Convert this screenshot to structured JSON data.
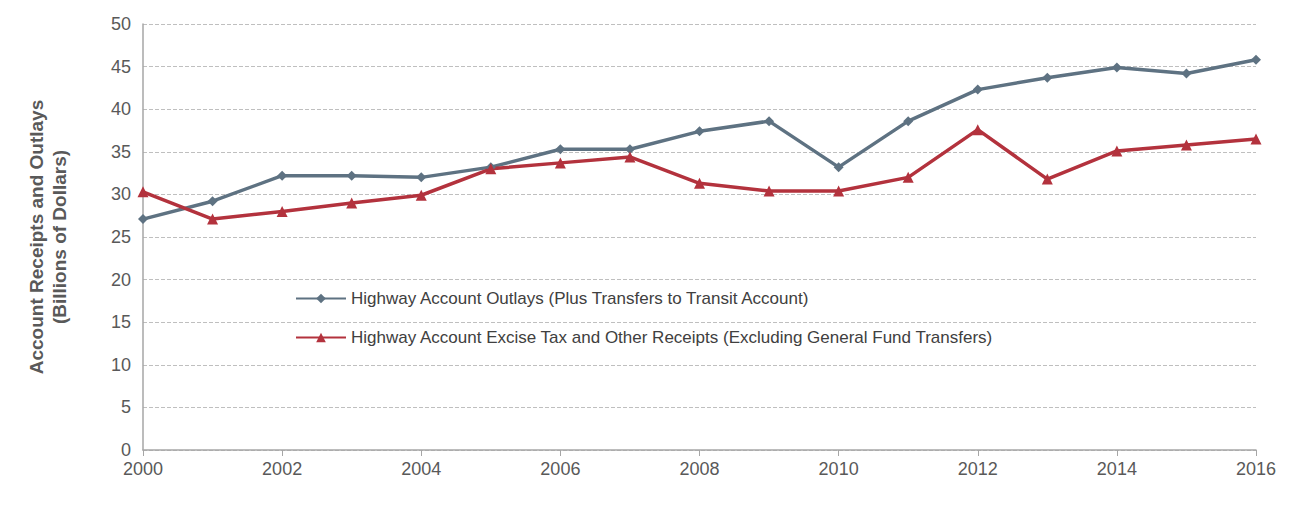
{
  "chart_data": {
    "type": "line",
    "y_label": "Account Receipts and Outlays\n(Billions of Dollars)",
    "x": [
      2000,
      2001,
      2002,
      2003,
      2004,
      2005,
      2006,
      2007,
      2008,
      2009,
      2010,
      2011,
      2012,
      2013,
      2014,
      2015,
      2016
    ],
    "series": [
      {
        "name": "Highway Account Outlays (Plus Transfers to Transit Account)",
        "color": "#5e7282",
        "marker": "diamond",
        "values": [
          27.1,
          29.2,
          32.2,
          32.2,
          32.0,
          33.2,
          35.3,
          35.3,
          37.4,
          38.6,
          33.2,
          38.6,
          42.3,
          43.7,
          44.9,
          44.2,
          45.8
        ]
      },
      {
        "name": "Highway Account Excise Tax and Other Receipts (Excluding General Fund Transfers)",
        "color": "#b3323d",
        "marker": "triangle",
        "values": [
          30.3,
          27.1,
          28.0,
          29.0,
          29.9,
          33.0,
          33.7,
          34.4,
          31.3,
          30.4,
          30.4,
          32.0,
          37.6,
          31.8,
          35.1,
          35.8,
          36.5
        ]
      }
    ],
    "xlim": [
      2000,
      2016
    ],
    "xticks": [
      2000,
      2002,
      2004,
      2006,
      2008,
      2010,
      2012,
      2014,
      2016
    ],
    "ylim": [
      0,
      50
    ],
    "yticks": [
      0,
      5,
      10,
      15,
      20,
      25,
      30,
      35,
      40,
      45,
      50
    ],
    "grid": true,
    "legend": "center"
  }
}
